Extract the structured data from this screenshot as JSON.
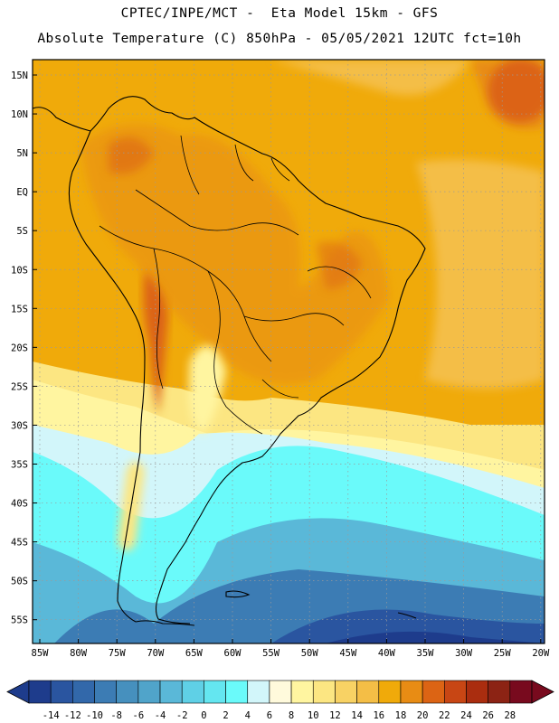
{
  "header": {
    "line1": "CPTEC/INPE/MCT -  Eta Model 15km - GFS",
    "line2": "Absolute Temperature (C) 850hPa - 05/05/2021 12UTC fct=10h"
  },
  "map": {
    "lat_labels": [
      "15N",
      "10N",
      "5N",
      "EQ",
      "5S",
      "10S",
      "15S",
      "20S",
      "25S",
      "30S",
      "35S",
      "40S",
      "45S",
      "50S",
      "55S"
    ],
    "lon_labels": [
      "85W",
      "80W",
      "75W",
      "70W",
      "65W",
      "60W",
      "55W",
      "50W",
      "45W",
      "40W",
      "35W",
      "30W",
      "25W",
      "20W"
    ]
  },
  "colorbar": {
    "labels": [
      "-14",
      "-12",
      "-10",
      "-8",
      "-6",
      "-4",
      "-2",
      "0",
      "2",
      "4",
      "6",
      "8",
      "10",
      "12",
      "14",
      "16",
      "18",
      "20",
      "22",
      "24",
      "26",
      "28"
    ],
    "colors": [
      "#1e3c8c",
      "#2a55a0",
      "#3268aa",
      "#3c7cb4",
      "#4690be",
      "#50a4ca",
      "#5ab8d8",
      "#5fd0e6",
      "#64e6f0",
      "#6afafa",
      "#d2f6fa",
      "#fffadc",
      "#fff5a0",
      "#fce682",
      "#f8d264",
      "#f4be46",
      "#f0aa0a",
      "#e88c14",
      "#dc6414",
      "#c84614",
      "#aa2d0f",
      "#8c2314",
      "#780a1e"
    ]
  }
}
